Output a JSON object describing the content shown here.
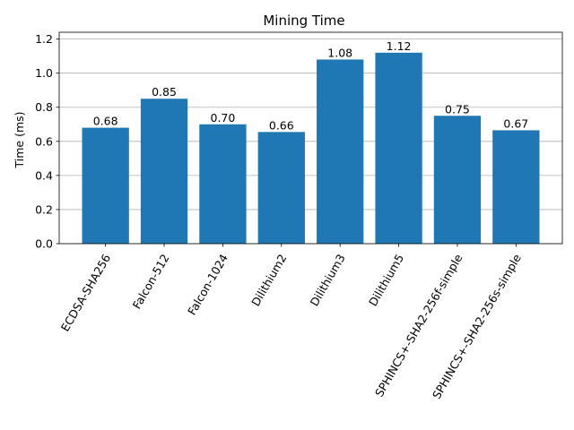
{
  "chart_data": {
    "type": "bar",
    "title": "Mining Time",
    "xlabel": "",
    "ylabel": "Time (ms)",
    "categories": [
      "ECDSA-SHA256",
      "Falcon-512",
      "Falcon-1024",
      "Dilithium2",
      "Dilithium3",
      "Dilithium5",
      "SPHINCS+-SHA2-256f-simple",
      "SPHINCS+-SHA2-256s-simple"
    ],
    "values": [
      0.68,
      0.85,
      0.7,
      0.655,
      1.08,
      1.12,
      0.75,
      0.665
    ],
    "data_labels": [
      "0.68",
      "0.85",
      "0.70",
      "0.66",
      "1.08",
      "1.12",
      "0.75",
      "0.67"
    ],
    "ylim": [
      0,
      1.24
    ],
    "yticks": [
      0.0,
      0.2,
      0.4,
      0.6,
      0.8,
      1.0,
      1.2
    ],
    "ytick_labels": [
      "0.0",
      "0.2",
      "0.4",
      "0.6",
      "0.8",
      "1.0",
      "1.2"
    ],
    "grid": "y",
    "bar_color": "#1f77b4"
  }
}
